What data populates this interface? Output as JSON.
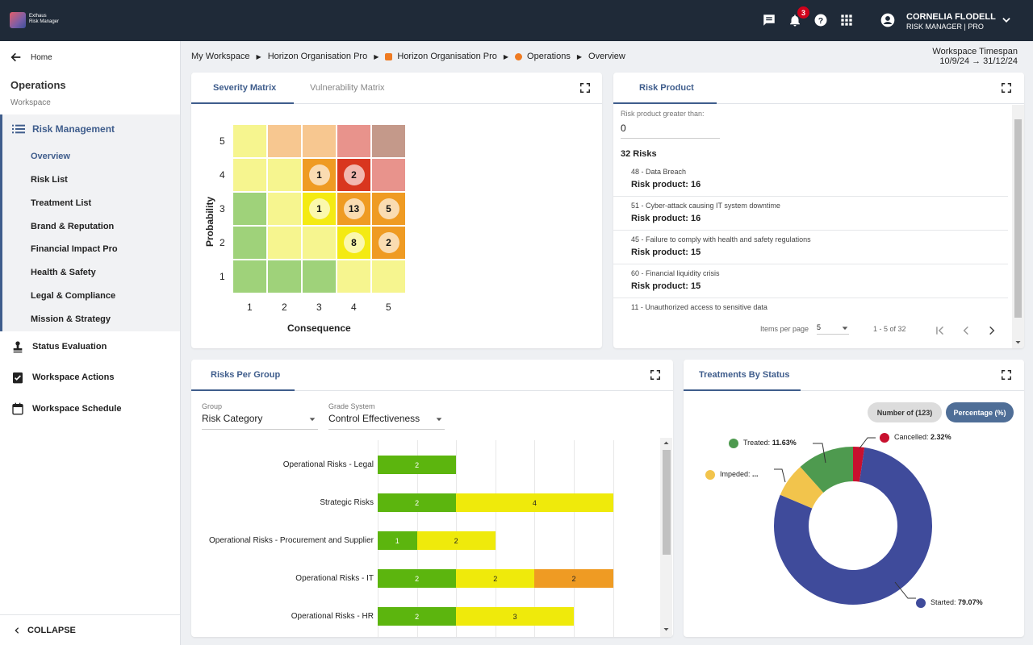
{
  "app": {
    "logo_line1": "Exthaus",
    "logo_line2": "Risk Manager",
    "notif_count": "3"
  },
  "user": {
    "name": "CORNELIA FLODELL",
    "role": "RISK MANAGER | PRO"
  },
  "sidebar": {
    "home": "Home",
    "section_title": "Operations",
    "section_sub": "Workspace",
    "group_label": "Risk Management",
    "sub_items": [
      "Overview",
      "Risk List",
      "Treatment List",
      "Brand & Reputation",
      "Financial Impact Pro",
      "Health & Safety",
      "Legal & Compliance",
      "Mission & Strategy"
    ],
    "items": [
      "Status Evaluation",
      "Workspace Actions",
      "Workspace Schedule"
    ],
    "collapse": "COLLAPSE"
  },
  "breadcrumb": [
    "My Workspace",
    "Horizon Organisation Pro",
    "Horizon Organisation Pro",
    "Operations",
    "Overview"
  ],
  "timespan": {
    "label": "Workspace Timespan",
    "value": "10/9/24 → 31/12/24"
  },
  "severity": {
    "tabs": [
      "Severity Matrix",
      "Vulnerability Matrix"
    ],
    "xlabel": "Consequence",
    "ylabel": "Probability",
    "xticks": [
      "1",
      "2",
      "3",
      "4",
      "5"
    ],
    "yticks": [
      "5",
      "4",
      "3",
      "2",
      "1"
    ],
    "colors": [
      [
        "#f6f58f",
        "#f7c790",
        "#f7c790",
        "#e8938c",
        "#c4998a"
      ],
      [
        "#f6f58f",
        "#f6f58f",
        "#ef9b23",
        "#d9361f",
        "#e8938c"
      ],
      [
        "#9fd27a",
        "#f6f58f",
        "#f4ea13",
        "#ef9b23",
        "#ef9b23"
      ],
      [
        "#9fd27a",
        "#f6f58f",
        "#f6f58f",
        "#f4ea13",
        "#ef9b23"
      ],
      [
        "#9fd27a",
        "#9fd27a",
        "#9fd27a",
        "#f6f58f",
        "#f6f58f"
      ]
    ],
    "bubbles": [
      {
        "row": 1,
        "col": 2,
        "value": "1"
      },
      {
        "row": 1,
        "col": 3,
        "value": "2"
      },
      {
        "row": 2,
        "col": 2,
        "value": "1"
      },
      {
        "row": 2,
        "col": 3,
        "value": "13"
      },
      {
        "row": 2,
        "col": 4,
        "value": "5"
      },
      {
        "row": 3,
        "col": 3,
        "value": "8"
      },
      {
        "row": 3,
        "col": 4,
        "value": "2"
      }
    ]
  },
  "risk_product": {
    "tab": "Risk Product",
    "filter_label": "Risk product greater than:",
    "filter_value": "0",
    "count": "32 Risks",
    "items": [
      {
        "title": "48 - Data Breach",
        "sub": "Risk product: 16"
      },
      {
        "title": "51 - Cyber-attack causing IT system downtime",
        "sub": "Risk product: 16"
      },
      {
        "title": "45 - Failure to comply with health and safety regulations",
        "sub": "Risk product: 15"
      },
      {
        "title": "60 - Financial liquidity crisis",
        "sub": "Risk product: 15"
      },
      {
        "title": "11 - Unauthorized access to sensitive data",
        "sub": ""
      }
    ],
    "items_per_page_label": "Items per page",
    "items_per_page": "5",
    "range": "1 - 5 of 32"
  },
  "risks_group": {
    "tab": "Risks Per Group",
    "group_label": "Group",
    "group_value": "Risk Category",
    "grade_label": "Grade System",
    "grade_value": "Control Effectiveness"
  },
  "chart_data": {
    "type": "bar",
    "orientation": "horizontal",
    "stacked": true,
    "categories": [
      "Operational Risks - Legal",
      "Strategic Risks",
      "Operational Risks - Procurement and Supplier",
      "Operational Risks - IT",
      "Operational Risks - HR"
    ],
    "series": [
      {
        "values": [
          2,
          2,
          1,
          2,
          2
        ],
        "color": "#5cb50e"
      },
      {
        "values": [
          0,
          4,
          2,
          2,
          3
        ],
        "color": "#efea0b"
      },
      {
        "values": [
          0,
          0,
          0,
          2,
          0
        ],
        "color": "#ef9b23"
      }
    ]
  },
  "treatments": {
    "tab": "Treatments By Status",
    "toggle_count": "Number of (123)",
    "toggle_pct": "Percentage (%)",
    "slices": [
      {
        "label": "Started:",
        "value": "79.07%",
        "pct": 79.07,
        "color": "#3f4b9b"
      },
      {
        "label": "Impeded:",
        "value": "...",
        "pct": 6.98,
        "color": "#f2c44c"
      },
      {
        "label": "Treated:",
        "value": "11.63%",
        "pct": 11.63,
        "color": "#4e9a4f"
      },
      {
        "label": "Cancelled:",
        "value": "2.32%",
        "pct": 2.32,
        "color": "#c8102e"
      }
    ]
  }
}
